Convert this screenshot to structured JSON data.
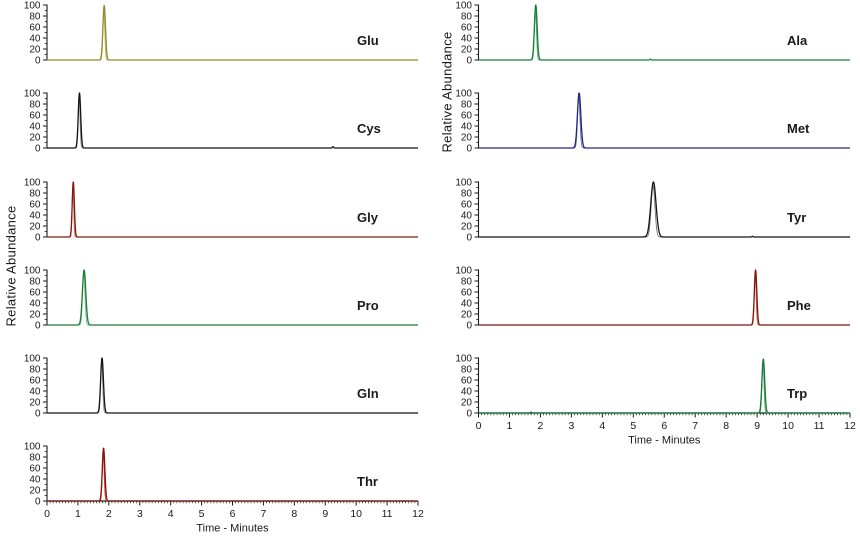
{
  "figure": {
    "background": "#ffffff",
    "text_color": "#1a1a1a"
  },
  "chart_data": {
    "type": "line",
    "description": "Stacked extracted-ion chromatogram panels of eleven amino acid standards, two columns, one labelled peak per panel",
    "xlabel": "Time - Minutes",
    "ylabel": "Relative Abundance",
    "xlim": [
      0,
      12
    ],
    "ylim": [
      0,
      100
    ],
    "x_ticks": [
      0,
      1,
      2,
      3,
      4,
      5,
      6,
      7,
      8,
      9,
      10,
      11,
      12
    ],
    "x_tick_labels": [
      "0",
      "1",
      "2",
      "3",
      "4",
      "5",
      "6",
      "7",
      "8",
      "9",
      "10",
      "11",
      "12"
    ],
    "y_ticks": [
      0,
      20,
      40,
      60,
      80,
      100
    ],
    "y_tick_labels": [
      "0",
      "20",
      "40",
      "60",
      "80",
      "100"
    ],
    "columns": [
      {
        "side": "left",
        "panels": [
          {
            "label": "Glu",
            "peak_rt": 1.85,
            "peak_height": 99,
            "peak_sigma": 0.042,
            "color": "#8d8d2b",
            "color2": "#bdbd6a",
            "blips": []
          },
          {
            "label": "Cys",
            "peak_rt": 1.05,
            "peak_height": 100,
            "peak_sigma": 0.04,
            "color": "#151515",
            "color2": "#8a8a8a",
            "blips": [
              {
                "rt": 9.25,
                "height": 2.5
              }
            ]
          },
          {
            "label": "Gly",
            "peak_rt": 0.85,
            "peak_height": 100,
            "peak_sigma": 0.035,
            "color": "#7e1a10",
            "color2": "#d96a52",
            "blips": []
          },
          {
            "label": "Pro",
            "peak_rt": 1.2,
            "peak_height": 100,
            "peak_sigma": 0.055,
            "color": "#1d7c35",
            "color2": "#74b98a",
            "blips": []
          },
          {
            "label": "Gln",
            "peak_rt": 1.78,
            "peak_height": 100,
            "peak_sigma": 0.045,
            "color": "#151515",
            "color2": "#8a8a8a",
            "blips": []
          },
          {
            "label": "Thr",
            "peak_rt": 1.83,
            "peak_height": 96,
            "peak_sigma": 0.042,
            "color": "#7e150d",
            "color2": "#e03a24",
            "blips": []
          }
        ]
      },
      {
        "side": "right",
        "panels": [
          {
            "label": "Ala",
            "peak_rt": 1.85,
            "peak_height": 100,
            "peak_sigma": 0.045,
            "color": "#178038",
            "color2": "#5fae7b",
            "blips": [
              {
                "rt": 5.55,
                "height": 1.5
              }
            ]
          },
          {
            "label": "Met",
            "peak_rt": 3.25,
            "peak_height": 100,
            "peak_sigma": 0.055,
            "color": "#24247c",
            "color2": "#6a6ab2",
            "blips": []
          },
          {
            "label": "Tyr",
            "peak_rt": 5.65,
            "peak_height": 100,
            "peak_sigma": 0.085,
            "color": "#151515",
            "color2": "#777777",
            "blips": [
              {
                "rt": 8.85,
                "height": 1.2
              }
            ]
          },
          {
            "label": "Phe",
            "peak_rt": 8.95,
            "peak_height": 100,
            "peak_sigma": 0.04,
            "color": "#7e150d",
            "color2": "#d96a52",
            "blips": []
          },
          {
            "label": "Trp",
            "peak_rt": 9.2,
            "peak_height": 98,
            "peak_sigma": 0.045,
            "color": "#157a36",
            "color2": "#58a874",
            "blips": [
              {
                "rt": 1.7,
                "height": 1.5
              }
            ]
          }
        ]
      }
    ]
  }
}
